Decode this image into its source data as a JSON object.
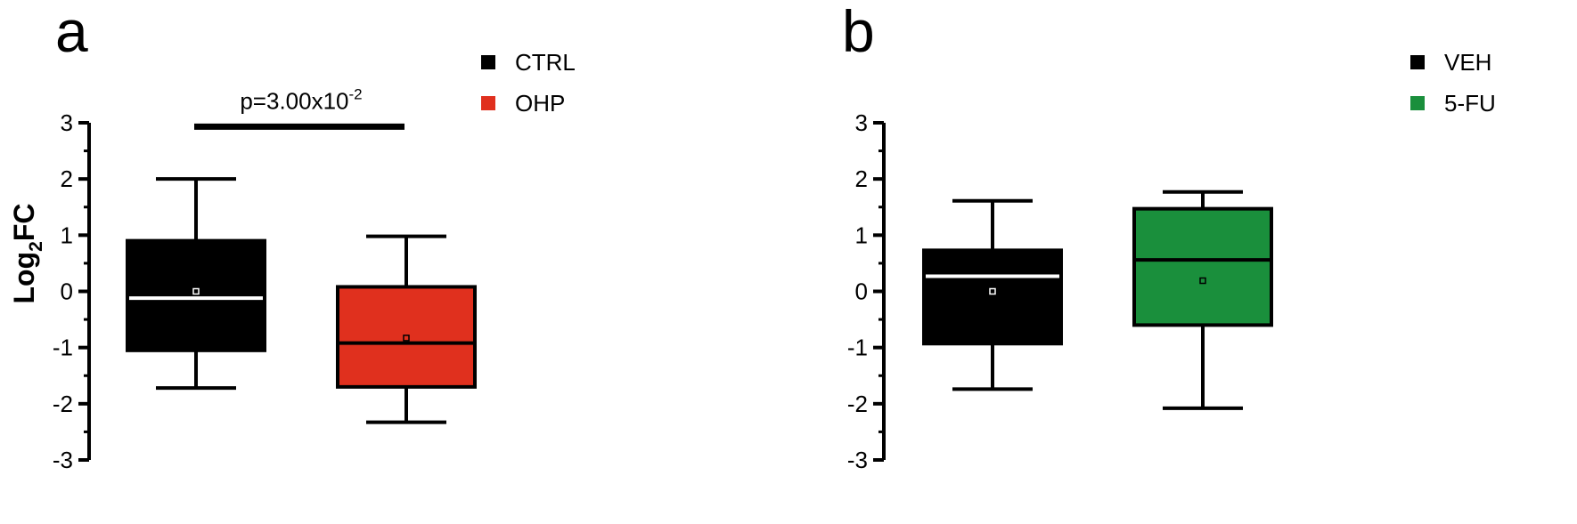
{
  "chart_data": [
    {
      "type": "box",
      "panel_label": "a",
      "ylabel_main": "Log",
      "ylabel_sub": "2",
      "ylabel_rest": "FC",
      "ylim": [
        -3,
        3
      ],
      "yticks": [
        "-3",
        "-2",
        "-1",
        "0",
        "1",
        "2",
        "3"
      ],
      "legend": [
        {
          "label": "CTRL",
          "color": "#000000"
        },
        {
          "label": "OHP",
          "color": "#e0301e"
        }
      ],
      "series": [
        {
          "name": "CTRL",
          "color": "#000000",
          "median_color": "#ffffff",
          "whisker_low": -1.72,
          "q1": -1.05,
          "median": -0.12,
          "q3": 0.9,
          "whisker_high": 2.0,
          "mean": 0.0
        },
        {
          "name": "OHP",
          "color": "#e0301e",
          "median_color": "#000000",
          "whisker_low": -2.33,
          "q1": -1.7,
          "median": -0.92,
          "q3": 0.08,
          "whisker_high": 0.98,
          "mean": -0.83
        }
      ],
      "significance": {
        "text_main": "p=3.00x10",
        "text_exp": "-2",
        "y": 2.93
      }
    },
    {
      "type": "box",
      "panel_label": "b",
      "ylim": [
        -3,
        3
      ],
      "yticks": [
        "-3",
        "-2",
        "-1",
        "0",
        "1",
        "2",
        "3"
      ],
      "legend": [
        {
          "label": "VEH",
          "color": "#000000"
        },
        {
          "label": "5-FU",
          "color": "#1a8f3c"
        }
      ],
      "series": [
        {
          "name": "VEH",
          "color": "#000000",
          "median_color": "#ffffff",
          "whisker_low": -1.74,
          "q1": -0.93,
          "median": 0.27,
          "q3": 0.73,
          "whisker_high": 1.61,
          "mean": 0.0
        },
        {
          "name": "5-FU",
          "color": "#1a8f3c",
          "median_color": "#000000",
          "whisker_low": -2.08,
          "q1": -0.6,
          "median": 0.56,
          "q3": 1.47,
          "whisker_high": 1.77,
          "mean": 0.19
        }
      ]
    }
  ]
}
